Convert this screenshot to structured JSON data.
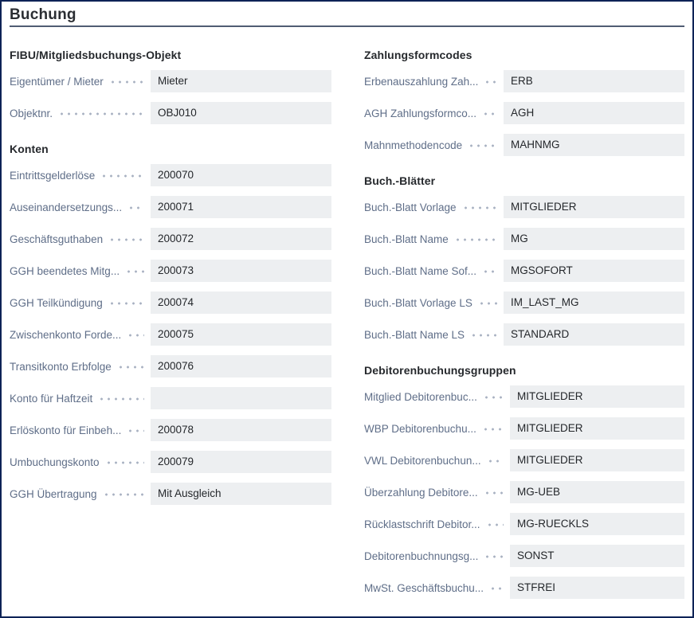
{
  "page": {
    "title": "Buchung"
  },
  "colors": {
    "border": "#0e2356",
    "rule": "#505c73",
    "field_bg": "#edeff1",
    "label_text": "#5f6e88",
    "value_text": "#24272b",
    "heading_text": "#26292d",
    "leader_dots": "#a9b2c2"
  },
  "columns": [
    {
      "sections": [
        {
          "title": "FIBU/Mitgliedsbuchungs-Objekt",
          "fields": [
            {
              "label": "Eigentümer / Mieter",
              "value": "Mieter"
            },
            {
              "label": "Objektnr.",
              "value": "OBJ010"
            }
          ]
        },
        {
          "title": "Konten",
          "fields": [
            {
              "label": "Eintrittsgelderlöse",
              "value": "200070"
            },
            {
              "label": "Auseinandersetzungs...",
              "value": "200071"
            },
            {
              "label": "Geschäftsguthaben",
              "value": "200072"
            },
            {
              "label": "GGH beendetes Mitg...",
              "value": "200073"
            },
            {
              "label": "GGH Teilkündigung",
              "value": "200074"
            },
            {
              "label": "Zwischenkonto Forde...",
              "value": "200075"
            },
            {
              "label": "Transitkonto Erbfolge",
              "value": "200076"
            },
            {
              "label": "Konto für Haftzeit",
              "value": ""
            },
            {
              "label": "Erlöskonto für Einbeh...",
              "value": "200078"
            },
            {
              "label": "Umbuchungskonto",
              "value": "200079"
            },
            {
              "label": "GGH Übertragung",
              "value": "Mit Ausgleich"
            }
          ]
        }
      ]
    },
    {
      "sections": [
        {
          "title": "Zahlungsformcodes",
          "fields": [
            {
              "label": "Erbenauszahlung Zah...",
              "value": "ERB"
            },
            {
              "label": "AGH Zahlungsformco...",
              "value": "AGH"
            },
            {
              "label": "Mahnmethodencode",
              "value": "MAHNMG"
            }
          ]
        },
        {
          "title": "Buch.-Blätter",
          "fields": [
            {
              "label": "Buch.-Blatt Vorlage",
              "value": "MITGLIEDER"
            },
            {
              "label": "Buch.-Blatt Name",
              "value": "MG"
            },
            {
              "label": "Buch.-Blatt Name Sof...",
              "value": "MGSOFORT"
            },
            {
              "label": "Buch.-Blatt Vorlage LS",
              "value": "IM_LAST_MG"
            },
            {
              "label": "Buch.-Blatt Name LS",
              "value": "STANDARD"
            }
          ]
        },
        {
          "title": "Debitorenbuchungsgruppen",
          "fields": [
            {
              "label": "Mitglied Debitorenbuc...",
              "value": "MITGLIEDER"
            },
            {
              "label": "WBP Debitorenbuchu...",
              "value": "MITGLIEDER"
            },
            {
              "label": "VWL Debitorenbuchun...",
              "value": "MITGLIEDER"
            },
            {
              "label": "Überzahlung Debitore...",
              "value": "MG-UEB"
            },
            {
              "label": "Rücklastschrift Debitor...",
              "value": "MG-RUECKLS"
            },
            {
              "label": "Debitorenbuchnungsg...",
              "value": "SONST"
            },
            {
              "label": "MwSt. Geschäftsbuchu...",
              "value": "STFREI"
            }
          ]
        }
      ]
    }
  ]
}
